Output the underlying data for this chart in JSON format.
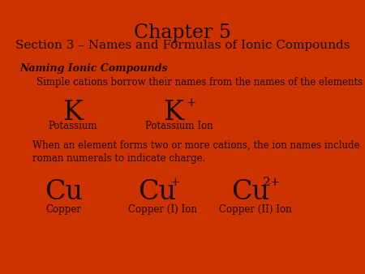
{
  "background_color": "#cc3300",
  "text_color": "#1a0a00",
  "title1": "Chapter 5",
  "title2": "Section 3 – Names and Formulas of Ionic Compounds",
  "heading": "Naming Ionic Compounds",
  "subtext1": "Simple cations borrow their names from the names of the elements",
  "body_text": "When an element forms two or more cations, the ion names include\nroman numerals to indicate charge.",
  "fig_width": 4.5,
  "fig_height": 3.38,
  "dpi": 100
}
